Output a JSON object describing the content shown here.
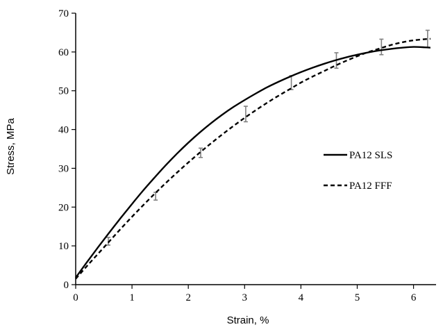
{
  "chart_data": {
    "type": "line",
    "title": "",
    "xlabel": "Strain, %",
    "ylabel": "Stress, MPa",
    "xlim": [
      0,
      6.4
    ],
    "ylim": [
      0,
      70
    ],
    "xticks": [
      "0",
      "1",
      "2",
      "3",
      "4",
      "5",
      "6"
    ],
    "yticks": [
      "0",
      "10",
      "20",
      "30",
      "40",
      "50",
      "60",
      "70"
    ],
    "grid": false,
    "legend_position": "right-center",
    "series": [
      {
        "name": "PA12 SLS",
        "line_style": "solid",
        "x": [
          0,
          0.2,
          0.4,
          0.6,
          0.8,
          1.0,
          1.2,
          1.4,
          1.6,
          1.8,
          2.0,
          2.2,
          2.4,
          2.6,
          2.8,
          3.0,
          3.2,
          3.4,
          3.6,
          3.8,
          4.0,
          4.2,
          4.4,
          4.6,
          4.8,
          5.0,
          5.2,
          5.4,
          5.6,
          5.8,
          6.0,
          6.2,
          6.3
        ],
        "y": [
          1.8,
          5.8,
          9.7,
          13.5,
          17.2,
          20.8,
          24.3,
          27.6,
          30.8,
          33.8,
          36.6,
          39.2,
          41.6,
          43.8,
          45.8,
          47.6,
          49.3,
          50.9,
          52.3,
          53.6,
          54.8,
          55.9,
          56.9,
          57.8,
          58.6,
          59.3,
          59.9,
          60.4,
          60.8,
          61.1,
          61.3,
          61.2,
          61.1
        ]
      },
      {
        "name": "PA12 FFF",
        "line_style": "dashed",
        "x": [
          0,
          0.2,
          0.4,
          0.6,
          0.8,
          1.0,
          1.2,
          1.4,
          1.6,
          1.8,
          2.0,
          2.2,
          2.4,
          2.6,
          2.8,
          3.0,
          3.2,
          3.4,
          3.6,
          3.8,
          4.0,
          4.2,
          4.4,
          4.6,
          4.8,
          5.0,
          5.2,
          5.4,
          5.6,
          5.8,
          6.0,
          6.2,
          6.3
        ],
        "y": [
          1.5,
          4.8,
          8.0,
          11.2,
          14.4,
          17.5,
          20.5,
          23.4,
          26.2,
          28.9,
          31.5,
          34.0,
          36.4,
          38.7,
          40.9,
          43.0,
          45.0,
          46.9,
          48.7,
          50.4,
          52.1,
          53.6,
          55.0,
          56.4,
          57.7,
          58.9,
          60.0,
          60.9,
          61.8,
          62.5,
          63.0,
          63.3,
          63.4
        ]
      }
    ],
    "error_bars": [
      {
        "x": 0.58,
        "y": 11.2,
        "err": 1.0
      },
      {
        "x": 1.42,
        "y": 22.8,
        "err": 1.0
      },
      {
        "x": 2.22,
        "y": 34.0,
        "err": 1.2
      },
      {
        "x": 3.02,
        "y": 44.0,
        "err": 2.0
      },
      {
        "x": 3.83,
        "y": 52.1,
        "err": 1.8
      },
      {
        "x": 4.63,
        "y": 57.8,
        "err": 2.0
      },
      {
        "x": 5.43,
        "y": 61.3,
        "err": 2.0
      },
      {
        "x": 6.25,
        "y": 63.4,
        "err": 2.2
      }
    ],
    "colors": {
      "series": "#000000",
      "error_bar": "#808080",
      "axis": "#000000"
    }
  }
}
